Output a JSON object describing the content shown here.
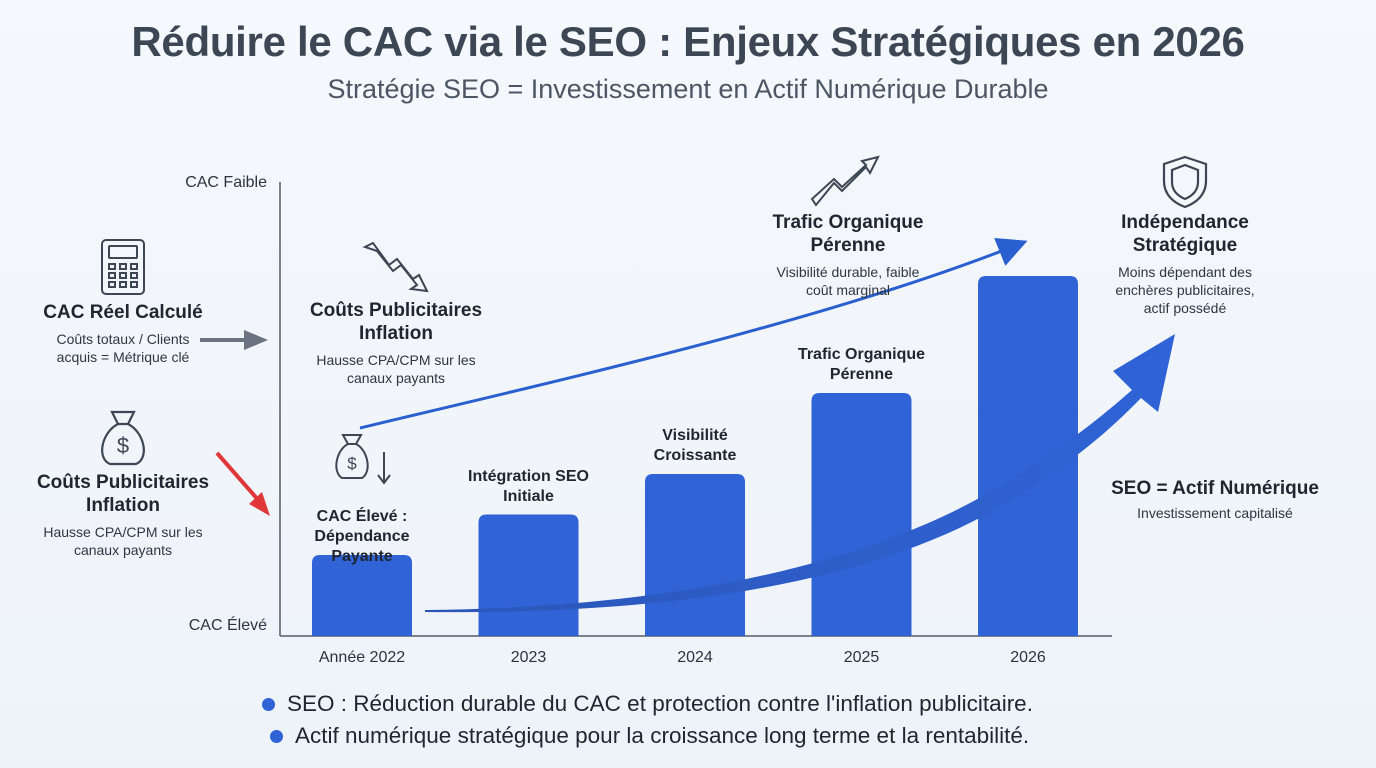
{
  "header": {
    "title": "Réduire le CAC via le SEO : Enjeux Stratégiques en 2026",
    "subtitle": "Stratégie SEO = Investissement en Actif Numérique Durable"
  },
  "left_panel": {
    "cac_reel": {
      "title": "CAC Réel Calculé",
      "desc": "Coûts totaux / Clients acquis = Métrique clé",
      "icon": "calculator-icon"
    },
    "couts_pub": {
      "title": "Coûts Publicitaires Inflation",
      "desc": "Hausse CPA/CPM sur les canaux payants",
      "icon": "money-bag-icon"
    }
  },
  "annotations": {
    "couts_pub_top": {
      "title": "Coûts Publicitaires Inflation",
      "desc": "Hausse CPA/CPM sur les canaux payants",
      "icon": "trend-down-icon"
    },
    "trafic_top": {
      "title": "Trafic Organique Pérenne",
      "desc": "Visibilité durable, faible coût marginal",
      "icon": "trend-up-icon"
    },
    "independance": {
      "title": "Indépendance Stratégique",
      "desc": "Moins dépendant des enchères publicitaires, actif possédé",
      "icon": "shield-icon"
    },
    "seo_actif": {
      "title": "SEO = Actif Numérique",
      "desc": "Investissement capitalisé"
    }
  },
  "chart_data": {
    "type": "bar",
    "categories": [
      "Année 2022",
      "2023",
      "2024",
      "2025",
      "2026"
    ],
    "values": [
      1.8,
      2.7,
      3.6,
      5.4,
      8.0
    ],
    "bar_labels": [
      "CAC Élevé : Dépendance Payante",
      "Intégration SEO Initiale",
      "Visibilité Croissante",
      "Trafic Organique Pérenne",
      ""
    ],
    "ylim": [
      0,
      10
    ],
    "y_tick_labels": {
      "top": "CAC Faible",
      "bottom": "CAC Élevé"
    },
    "bar_color": "#2f63d6",
    "grid": false
  },
  "footer": {
    "bullets": [
      "SEO : Réduction durable du CAC et protection contre l'inflation publicitaire.",
      "Actif numérique stratégique pour la croissance long terme et la rentabilité."
    ]
  },
  "colors": {
    "bar": "#2f63d6",
    "arrow": "#2a5fcf",
    "red_arrow": "#e0383a",
    "gray_arrow": "#6b7480"
  }
}
